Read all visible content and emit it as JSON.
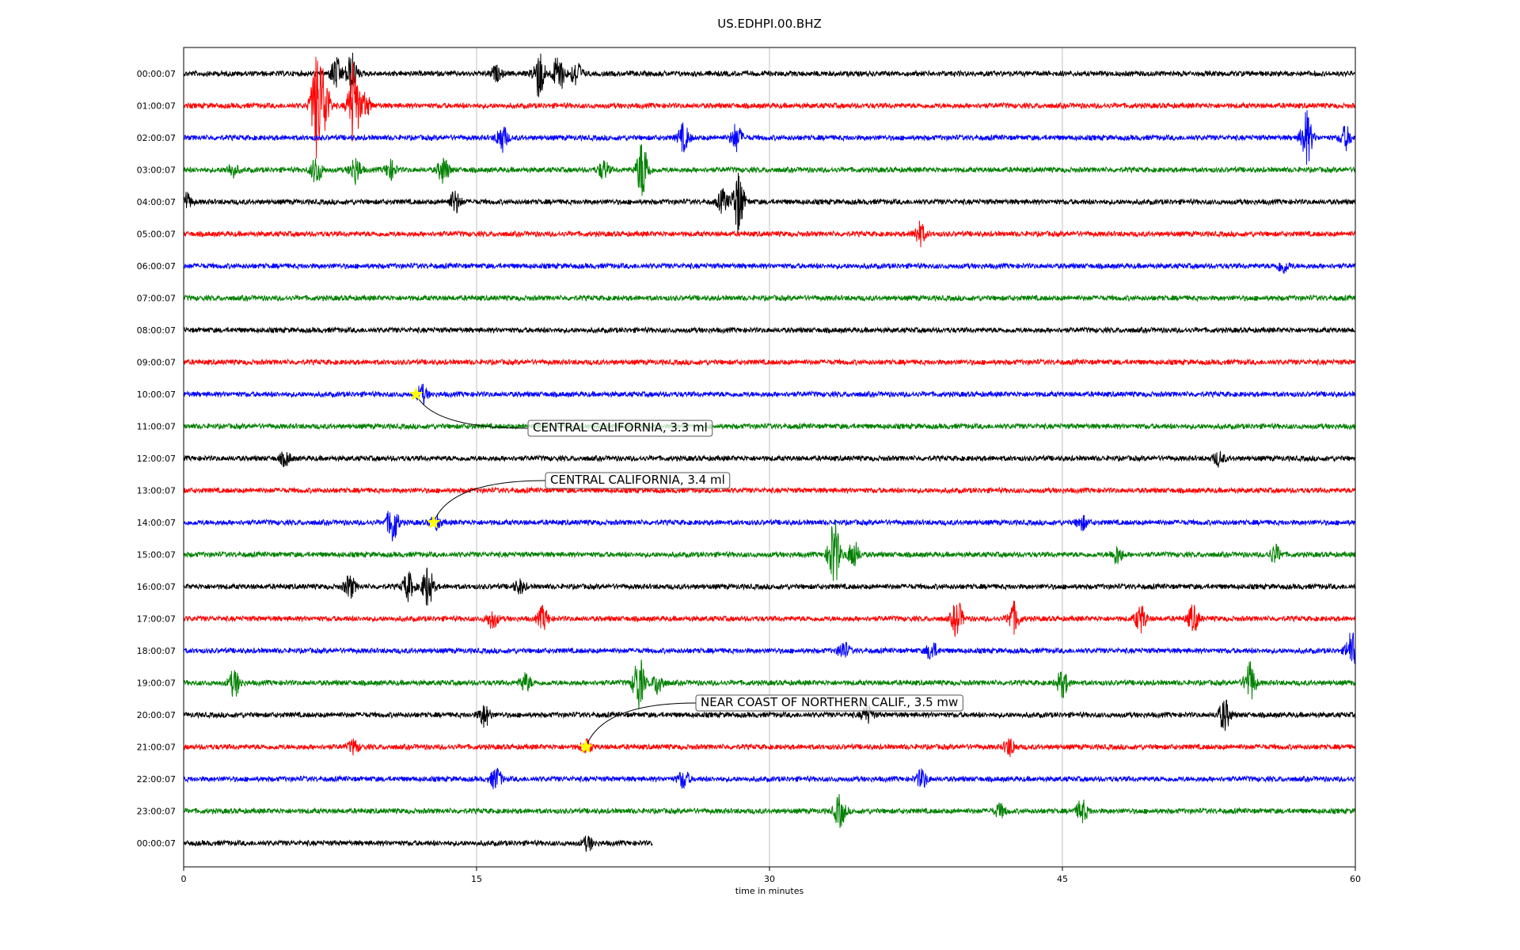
{
  "chart_data": {
    "type": "line",
    "title": "US.EDHPI.00.BHZ",
    "xlabel": "time in minutes",
    "xlim": [
      0,
      60
    ],
    "xticks": [
      0,
      15,
      30,
      45,
      60
    ],
    "xtick_labels": [
      "0",
      "15",
      "30",
      "45",
      "60"
    ],
    "grid": "vertical",
    "trace_colors": [
      "#000000",
      "#ff0000",
      "#0000ff",
      "#008000"
    ],
    "rows": [
      {
        "label": "00:00:07",
        "color": "#000000",
        "end": 60,
        "events": [
          [
            7.8,
            0.7
          ],
          [
            8.6,
            0.9
          ],
          [
            18.2,
            1.1
          ],
          [
            19.2,
            0.9
          ],
          [
            20.1,
            0.6
          ],
          [
            16.0,
            0.3
          ]
        ]
      },
      {
        "label": "01:00:07",
        "color": "#ff0000",
        "end": 60,
        "events": [
          [
            6.8,
            2.2
          ],
          [
            7.2,
            1.4
          ],
          [
            8.7,
            2.0
          ],
          [
            9.3,
            0.5
          ]
        ]
      },
      {
        "label": "02:00:07",
        "color": "#0000ff",
        "end": 60,
        "events": [
          [
            16.3,
            0.6
          ],
          [
            25.6,
            0.6
          ],
          [
            28.3,
            0.6
          ],
          [
            57.5,
            1.2
          ],
          [
            59.5,
            0.5
          ]
        ]
      },
      {
        "label": "03:00:07",
        "color": "#008000",
        "end": 60,
        "events": [
          [
            2.5,
            0.3
          ],
          [
            6.8,
            0.6
          ],
          [
            8.8,
            0.6
          ],
          [
            10.6,
            0.4
          ],
          [
            13.3,
            0.6
          ],
          [
            21.5,
            0.4
          ],
          [
            23.5,
            1.4
          ]
        ]
      },
      {
        "label": "04:00:07",
        "color": "#000000",
        "end": 60,
        "events": [
          [
            0.1,
            0.4
          ],
          [
            13.9,
            0.5
          ],
          [
            27.6,
            0.5
          ],
          [
            28.4,
            1.4
          ]
        ]
      },
      {
        "label": "05:00:07",
        "color": "#ff0000",
        "end": 60,
        "events": [
          [
            37.7,
            0.5
          ]
        ]
      },
      {
        "label": "06:00:07",
        "color": "#0000ff",
        "end": 60,
        "events": [
          [
            56.3,
            0.3
          ]
        ]
      },
      {
        "label": "07:00:07",
        "color": "#008000",
        "end": 60,
        "events": []
      },
      {
        "label": "08:00:07",
        "color": "#000000",
        "end": 60,
        "events": []
      },
      {
        "label": "09:00:07",
        "color": "#ff0000",
        "end": 60,
        "events": []
      },
      {
        "label": "10:00:07",
        "color": "#0000ff",
        "end": 60,
        "events": [
          [
            12.2,
            0.4
          ]
        ]
      },
      {
        "label": "11:00:07",
        "color": "#008000",
        "end": 60,
        "events": []
      },
      {
        "label": "12:00:07",
        "color": "#000000",
        "end": 60,
        "events": [
          [
            5.2,
            0.3
          ],
          [
            53.0,
            0.3
          ]
        ]
      },
      {
        "label": "13:00:07",
        "color": "#ff0000",
        "end": 60,
        "events": []
      },
      {
        "label": "14:00:07",
        "color": "#0000ff",
        "end": 60,
        "events": [
          [
            10.7,
            0.9
          ],
          [
            12.9,
            0.3
          ],
          [
            46.0,
            0.3
          ]
        ]
      },
      {
        "label": "15:00:07",
        "color": "#008000",
        "end": 60,
        "events": [
          [
            33.3,
            1.6
          ],
          [
            34.3,
            0.6
          ],
          [
            47.8,
            0.4
          ],
          [
            55.9,
            0.4
          ]
        ]
      },
      {
        "label": "16:00:07",
        "color": "#000000",
        "end": 60,
        "events": [
          [
            8.5,
            0.5
          ],
          [
            11.5,
            0.6
          ],
          [
            12.5,
            0.9
          ],
          [
            17.2,
            0.3
          ]
        ]
      },
      {
        "label": "17:00:07",
        "color": "#ff0000",
        "end": 60,
        "events": [
          [
            15.8,
            0.4
          ],
          [
            18.4,
            0.5
          ],
          [
            39.6,
            0.8
          ],
          [
            42.5,
            0.7
          ],
          [
            49.0,
            0.6
          ],
          [
            51.7,
            0.6
          ]
        ]
      },
      {
        "label": "18:00:07",
        "color": "#0000ff",
        "end": 60,
        "events": [
          [
            33.8,
            0.4
          ],
          [
            38.3,
            0.4
          ],
          [
            59.8,
            0.8
          ]
        ]
      },
      {
        "label": "19:00:07",
        "color": "#008000",
        "end": 60,
        "events": [
          [
            2.6,
            0.6
          ],
          [
            17.5,
            0.4
          ],
          [
            23.3,
            1.2
          ],
          [
            24.3,
            0.5
          ],
          [
            45.0,
            0.6
          ],
          [
            54.6,
            0.9
          ]
        ]
      },
      {
        "label": "20:00:07",
        "color": "#000000",
        "end": 60,
        "events": [
          [
            15.4,
            0.5
          ],
          [
            35.0,
            0.4
          ],
          [
            53.3,
            0.7
          ]
        ]
      },
      {
        "label": "21:00:07",
        "color": "#ff0000",
        "end": 60,
        "events": [
          [
            8.7,
            0.3
          ],
          [
            20.6,
            0.3
          ],
          [
            42.3,
            0.4
          ]
        ]
      },
      {
        "label": "22:00:07",
        "color": "#0000ff",
        "end": 60,
        "events": [
          [
            16.0,
            0.5
          ],
          [
            25.6,
            0.4
          ],
          [
            37.8,
            0.4
          ]
        ]
      },
      {
        "label": "23:00:07",
        "color": "#008000",
        "end": 60,
        "events": [
          [
            33.6,
            0.7
          ],
          [
            41.8,
            0.3
          ],
          [
            46.0,
            0.5
          ]
        ]
      },
      {
        "label": "00:00:07",
        "color": "#000000",
        "end": 24,
        "events": [
          [
            20.7,
            0.3
          ]
        ]
      }
    ],
    "annotations": [
      {
        "text": "CENTRAL CALIFORNIA, 3.3 ml",
        "row": 10,
        "x": 11.9
      },
      {
        "text": "CENTRAL CALIFORNIA, 3.4 ml",
        "row": 14,
        "x": 12.8
      },
      {
        "text": "NEAR COAST OF NORTHERN CALIF., 3.5 mw",
        "row": 21,
        "x": 20.6
      }
    ],
    "marker_color": "#ffff00"
  }
}
